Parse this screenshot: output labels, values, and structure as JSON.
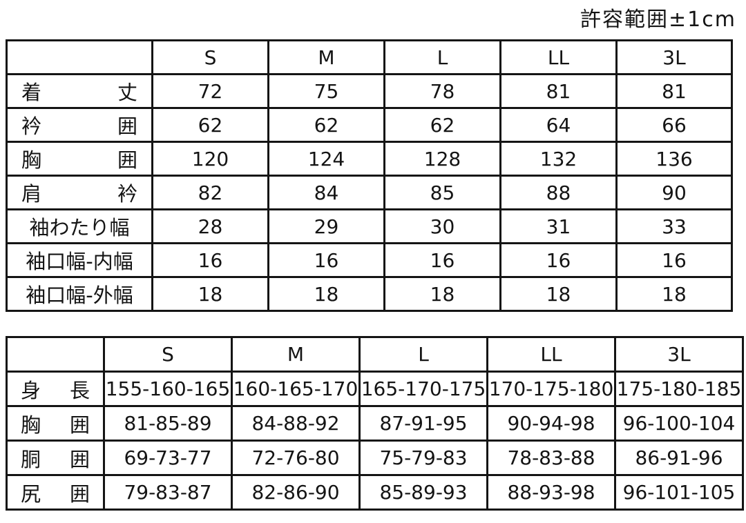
{
  "caption": "許容範囲±1cm",
  "chart_data": [
    {
      "type": "table",
      "columns": [
        "",
        "S",
        "M",
        "L",
        "LL",
        "3L"
      ],
      "rows": [
        {
          "label": "着丈",
          "values": [
            "72",
            "75",
            "78",
            "81",
            "81"
          ]
        },
        {
          "label": "衿囲",
          "values": [
            "62",
            "62",
            "62",
            "64",
            "66"
          ]
        },
        {
          "label": "胸囲",
          "values": [
            "120",
            "124",
            "128",
            "132",
            "136"
          ]
        },
        {
          "label": "肩衿",
          "values": [
            "82",
            "84",
            "85",
            "88",
            "90"
          ]
        },
        {
          "label": "袖わたり幅",
          "values": [
            "28",
            "29",
            "30",
            "31",
            "33"
          ]
        },
        {
          "label": "袖口幅-内幅",
          "values": [
            "16",
            "16",
            "16",
            "16",
            "16"
          ]
        },
        {
          "label": "袖口幅-外幅",
          "values": [
            "18",
            "18",
            "18",
            "18",
            "18"
          ]
        }
      ]
    },
    {
      "type": "table",
      "columns": [
        "",
        "S",
        "M",
        "L",
        "LL",
        "3L"
      ],
      "rows": [
        {
          "label": "身長",
          "values": [
            "155-160-165",
            "160-165-170",
            "165-170-175",
            "170-175-180",
            "175-180-185"
          ]
        },
        {
          "label": "胸囲",
          "values": [
            "81-85-89",
            "84-88-92",
            "87-91-95",
            "90-94-98",
            "96-100-104"
          ]
        },
        {
          "label": "胴囲",
          "values": [
            "69-73-77",
            "72-76-80",
            "75-79-83",
            "78-83-88",
            "86-91-96"
          ]
        },
        {
          "label": "尻囲",
          "values": [
            "79-83-87",
            "82-86-90",
            "85-89-93",
            "88-93-98",
            "96-101-105"
          ]
        }
      ]
    }
  ]
}
